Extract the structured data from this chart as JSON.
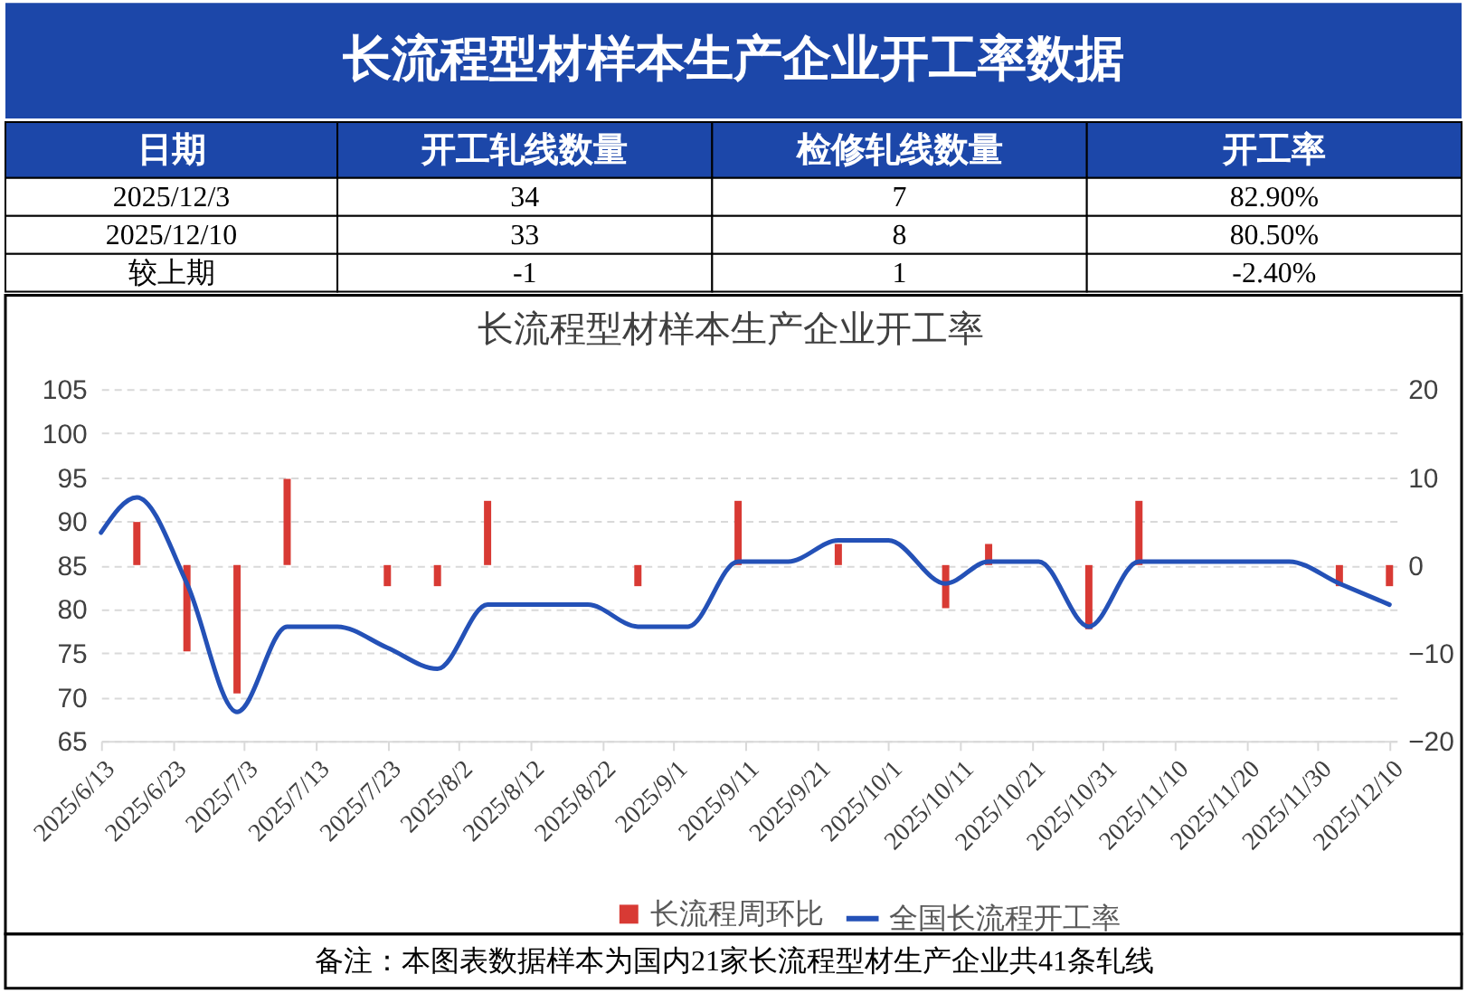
{
  "chart_data": [
    {
      "type": "other",
      "title": "长流程型材样本生产企业开工率数据",
      "ylabel": "日期",
      "categories": [
        "开工轧线数量",
        "检修轧线数量",
        "开工率"
      ],
      "y_categories": [
        "2025/12/3",
        "2025/12/10",
        "较上期"
      ],
      "cell_labels": [
        [
          "34",
          "7",
          "82.90%"
        ],
        [
          "33",
          "8",
          "80.50%"
        ],
        [
          "-1",
          "1",
          "-2.40%"
        ]
      ],
      "color": "#ffffff"
    },
    {
      "type": "bar",
      "title": "长流程型材样本生产企业开工率",
      "x": [
        "2025-06-18",
        "2025-06-25",
        "2025-07-02",
        "2025-07-09",
        "2025-07-16",
        "2025-07-23",
        "2025-07-30",
        "2025-08-06",
        "2025-08-13",
        "2025-08-20",
        "2025-08-27",
        "2025-09-03",
        "2025-09-10",
        "2025-09-17",
        "2025-09-24",
        "2025-10-01",
        "2025-10-09",
        "2025-10-15",
        "2025-10-22",
        "2025-10-29",
        "2025-11-05",
        "2025-11-12",
        "2025-11-19",
        "2025-11-26",
        "2025-12-03",
        "2025-12-10"
      ],
      "series": [
        {
          "name": "长流程周环比",
          "type": "bar",
          "axis": "y2",
          "color": "#d83a34",
          "values": [
            4.9,
            -9.8,
            -14.6,
            9.8,
            null,
            -2.4,
            -2.4,
            7.3,
            null,
            null,
            -2.4,
            null,
            7.3,
            null,
            2.4,
            null,
            -4.9,
            2.4,
            null,
            -7.3,
            7.3,
            null,
            null,
            null,
            -2.4,
            -2.4
          ]
        },
        {
          "name": "全国长流程开工率",
          "type": "line",
          "color": "#2451b7",
          "x": [
            "2025-06-13",
            "2025-06-18",
            "2025-06-25",
            "2025-07-02",
            "2025-07-09",
            "2025-07-16",
            "2025-07-23",
            "2025-07-30",
            "2025-08-06",
            "2025-08-13",
            "2025-08-20",
            "2025-08-27",
            "2025-09-03",
            "2025-09-10",
            "2025-09-17",
            "2025-09-24",
            "2025-10-01",
            "2025-10-09",
            "2025-10-15",
            "2025-10-22",
            "2025-10-29",
            "2025-11-05",
            "2025-11-12",
            "2025-11-19",
            "2025-11-26",
            "2025-12-03",
            "2025-12-10"
          ],
          "values": [
            88.7,
            92.7,
            82.9,
            68.3,
            78.0,
            78.0,
            75.6,
            73.2,
            80.5,
            80.5,
            80.5,
            78.0,
            78.0,
            85.4,
            85.4,
            87.8,
            87.8,
            82.9,
            85.4,
            85.4,
            78.0,
            85.4,
            85.4,
            85.4,
            85.4,
            82.9,
            80.5
          ]
        }
      ],
      "xlim": [
        "2025-06-13",
        "2025-12-11"
      ],
      "xticks": [
        {
          "value": "2025-06-13",
          "label": "2025/6/13"
        },
        {
          "value": "2025-06-23",
          "label": "2025/6/23"
        },
        {
          "value": "2025-07-03",
          "label": "2025/7/3"
        },
        {
          "value": "2025-07-13",
          "label": "2025/7/13"
        },
        {
          "value": "2025-07-23",
          "label": "2025/7/23"
        },
        {
          "value": "2025-08-02",
          "label": "2025/8/2"
        },
        {
          "value": "2025-08-12",
          "label": "2025/8/12"
        },
        {
          "value": "2025-08-22",
          "label": "2025/8/22"
        },
        {
          "value": "2025-09-01",
          "label": "2025/9/1"
        },
        {
          "value": "2025-09-11",
          "label": "2025/9/11"
        },
        {
          "value": "2025-09-21",
          "label": "2025/9/21"
        },
        {
          "value": "2025-10-01",
          "label": "2025/10/1"
        },
        {
          "value": "2025-10-11",
          "label": "2025/10/11"
        },
        {
          "value": "2025-10-21",
          "label": "2025/10/21"
        },
        {
          "value": "2025-10-31",
          "label": "2025/10/31"
        },
        {
          "value": "2025-11-10",
          "label": "2025/11/10"
        },
        {
          "value": "2025-11-20",
          "label": "2025/11/20"
        },
        {
          "value": "2025-11-30",
          "label": "2025/11/30"
        },
        {
          "value": "2025-12-10",
          "label": "2025/12/10"
        }
      ],
      "ylim": [
        65,
        105
      ],
      "yticks": [
        65,
        70,
        75,
        80,
        85,
        90,
        95,
        100,
        105
      ],
      "y2lim": [
        -20,
        20
      ],
      "y2ticks": [
        -20,
        -10,
        0,
        10,
        20
      ],
      "grid": "y",
      "legend": "bottom",
      "annotations": [
        "备注：本图表数据样本为国内21家长流程型材生产企业共41条轧线"
      ]
    }
  ]
}
